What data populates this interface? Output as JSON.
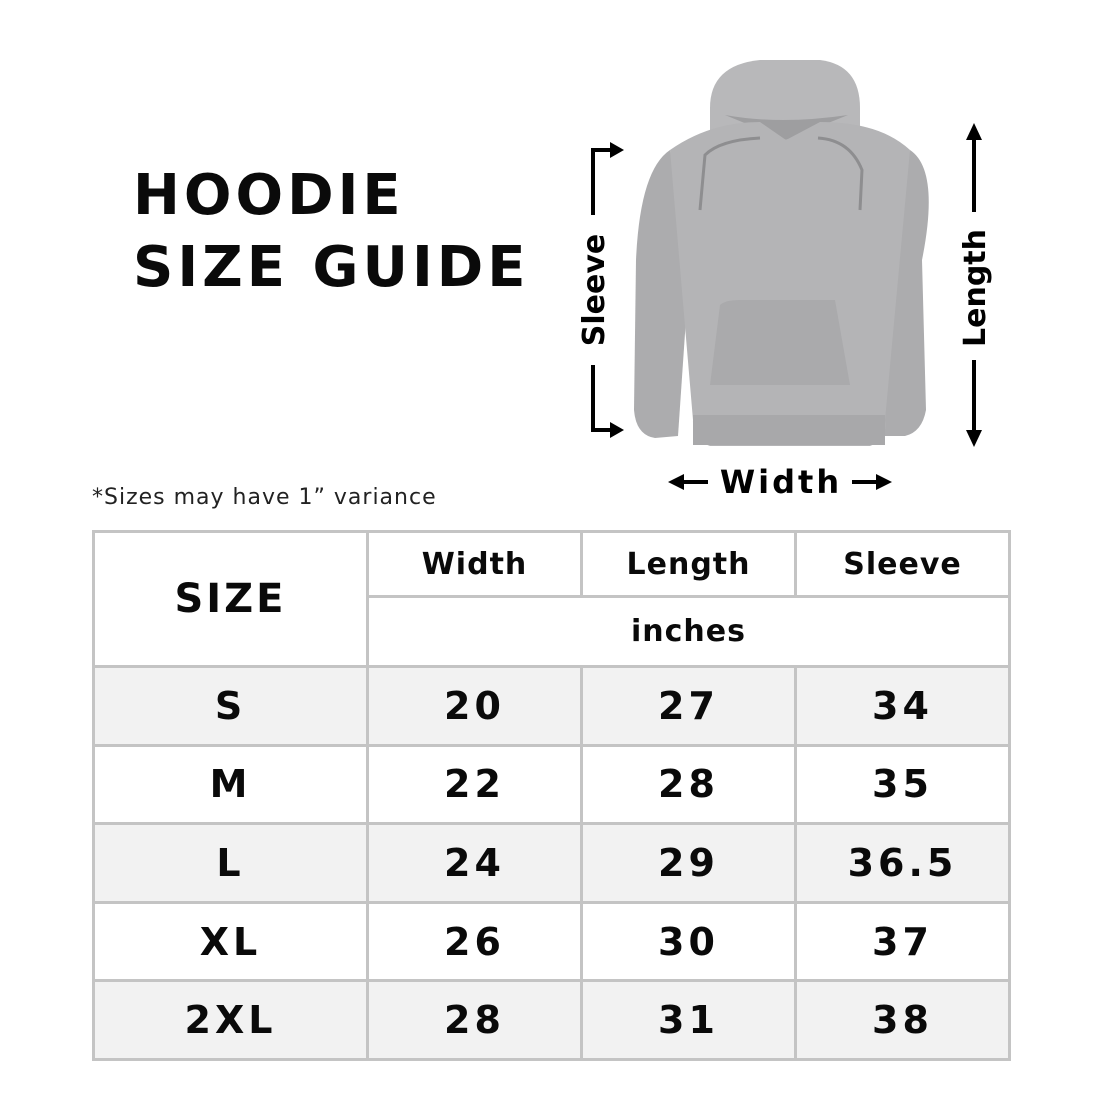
{
  "title": {
    "line1": "HOODIE",
    "line2": "SIZE GUIDE"
  },
  "note": "*Sizes may have 1” variance",
  "figure": {
    "labels": {
      "sleeve": "Sleeve",
      "length": "Length",
      "width": "Width"
    },
    "garment_color": "#b4b4b6"
  },
  "table": {
    "size_header": "SIZE",
    "columns": [
      "Width",
      "Length",
      "Sleeve"
    ],
    "unit": "inches",
    "rows": [
      {
        "size": "S",
        "width": "20",
        "length": "27",
        "sleeve": "34"
      },
      {
        "size": "M",
        "width": "22",
        "length": "28",
        "sleeve": "35"
      },
      {
        "size": "L",
        "width": "24",
        "length": "29",
        "sleeve": "36.5"
      },
      {
        "size": "XL",
        "width": "26",
        "length": "30",
        "sleeve": "37"
      },
      {
        "size": "2XL",
        "width": "28",
        "length": "31",
        "sleeve": "38"
      }
    ],
    "border_color": "#c4c4c4",
    "shade_color": "#f2f2f2"
  }
}
